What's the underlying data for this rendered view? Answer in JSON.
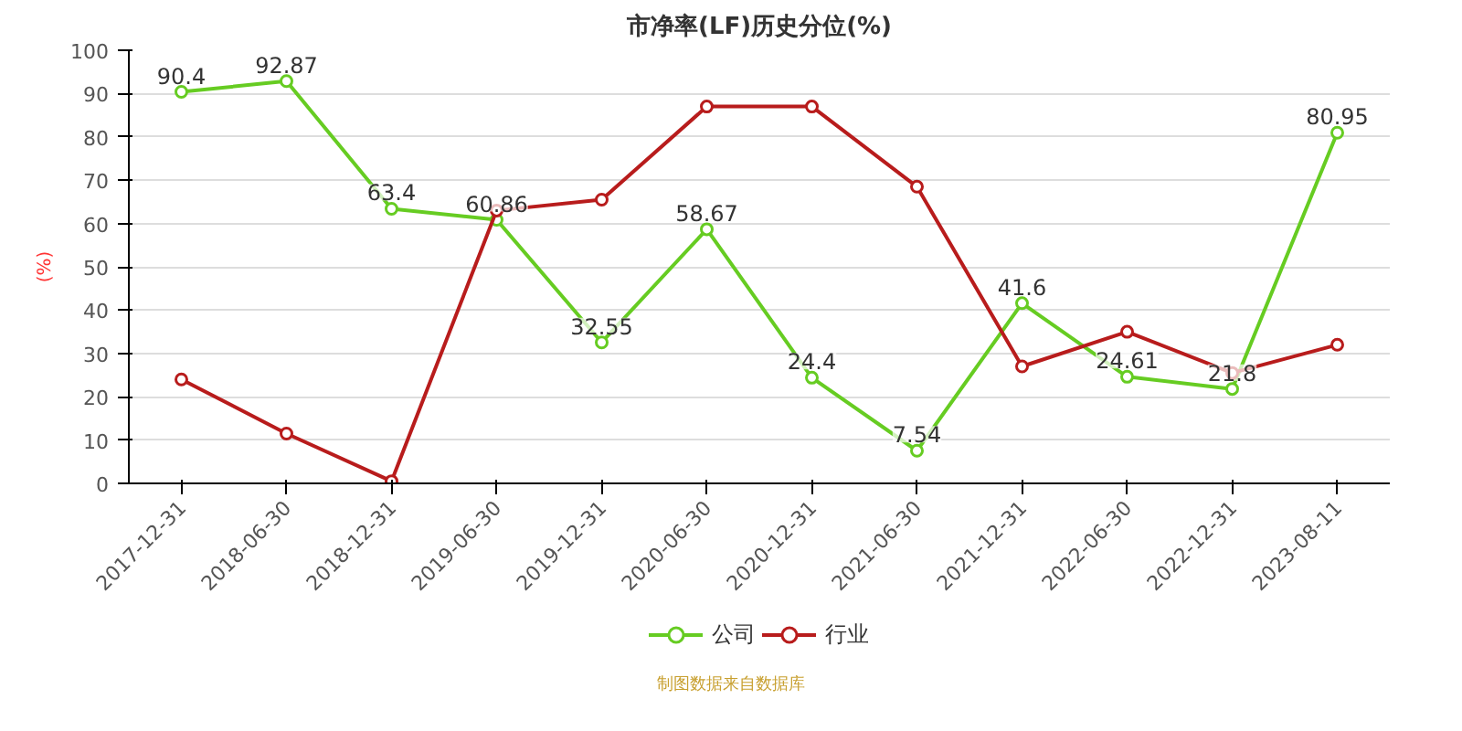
{
  "chart_data": {
    "type": "line",
    "title": "市净率(LF)历史分位(%)",
    "ylabel": "(%)",
    "categories": [
      "2017-12-31",
      "2018-06-30",
      "2018-12-31",
      "2019-06-30",
      "2019-12-31",
      "2020-06-30",
      "2020-12-31",
      "2021-06-30",
      "2021-12-31",
      "2022-06-30",
      "2022-12-31",
      "2023-08-11"
    ],
    "series": [
      {
        "name": "公司",
        "color": "#66cc22",
        "values": [
          90.4,
          92.87,
          63.4,
          60.86,
          32.55,
          58.67,
          24.4,
          7.54,
          41.6,
          24.61,
          21.8,
          80.95
        ],
        "value_labels": [
          "90.4",
          "92.87",
          "63.4",
          "60.86",
          "32.55",
          "58.67",
          "24.4",
          "7.54",
          "41.6",
          "24.61",
          "21.8",
          "80.95"
        ]
      },
      {
        "name": "行业",
        "color": "#b81c1c",
        "values": [
          24,
          11.5,
          0.5,
          63,
          65.5,
          87,
          87,
          68.5,
          27,
          35,
          25.5,
          32
        ]
      }
    ],
    "ylim": [
      0,
      100
    ],
    "yticks": [
      0,
      10,
      20,
      30,
      40,
      50,
      60,
      70,
      80,
      90,
      100
    ],
    "grid": "y",
    "legend": "bottom",
    "marker": "circle",
    "line_style": "solid",
    "annotations": [
      "制图数据来自数据库"
    ]
  }
}
